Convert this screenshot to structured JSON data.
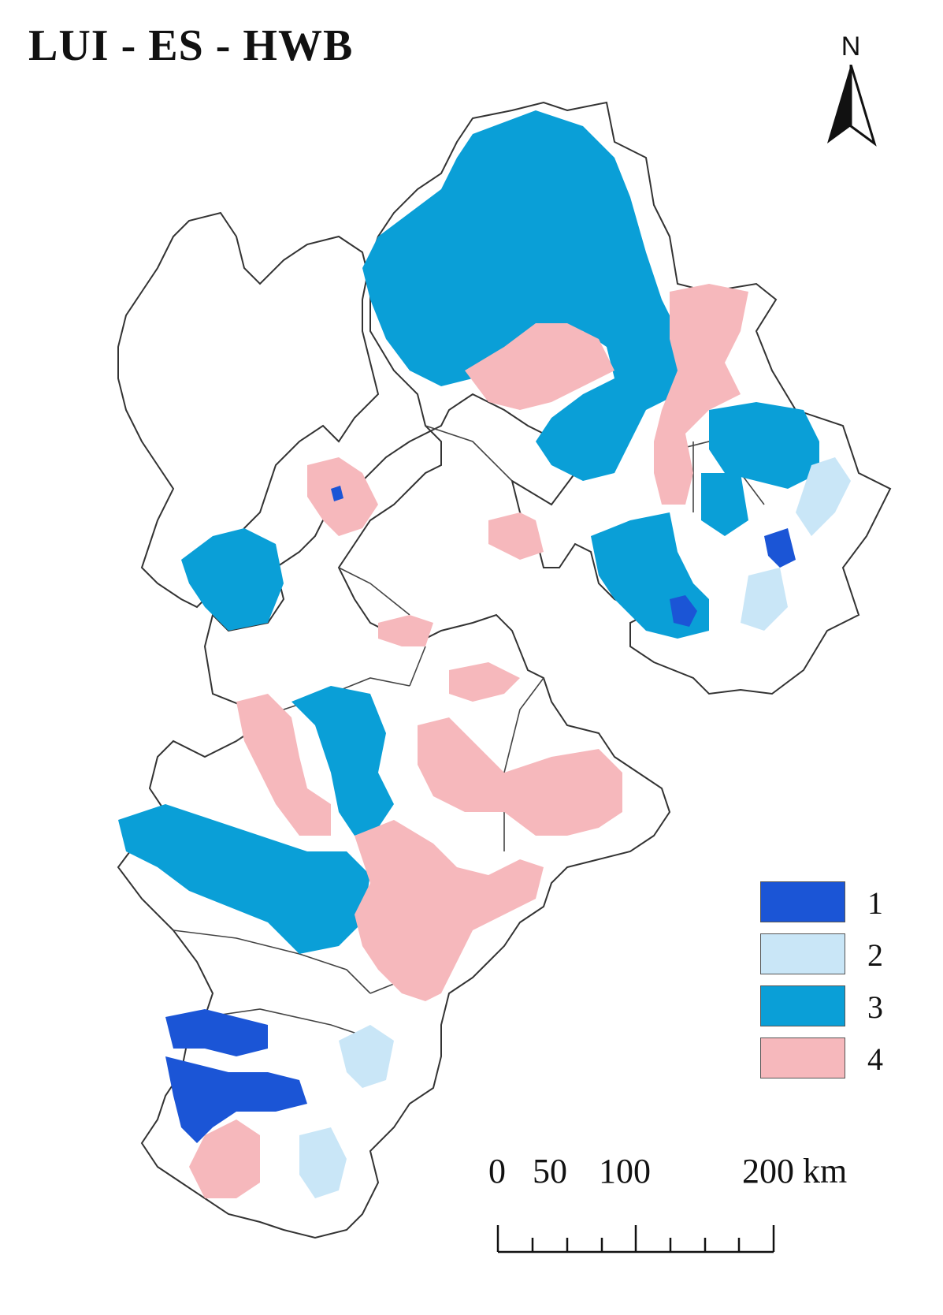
{
  "title": "LUI - ES - HWB",
  "north_arrow": {
    "label": "N",
    "icon": "north-arrow-icon"
  },
  "colors": {
    "class_1": "#1b55d6",
    "class_2": "#c9e6f7",
    "class_3": "#0a9fd7",
    "class_4": "#f6b8bc",
    "boundary": "#333333"
  },
  "legend": {
    "items": [
      {
        "label": "1",
        "color": "#1b55d6"
      },
      {
        "label": "2",
        "color": "#c9e6f7"
      },
      {
        "label": "3",
        "color": "#0a9fd7"
      },
      {
        "label": "4",
        "color": "#f6b8bc"
      }
    ]
  },
  "scale_bar": {
    "labels": [
      "0",
      "50",
      "100",
      "200 km"
    ],
    "values": [
      0,
      50,
      100,
      200
    ],
    "unit": "km"
  }
}
